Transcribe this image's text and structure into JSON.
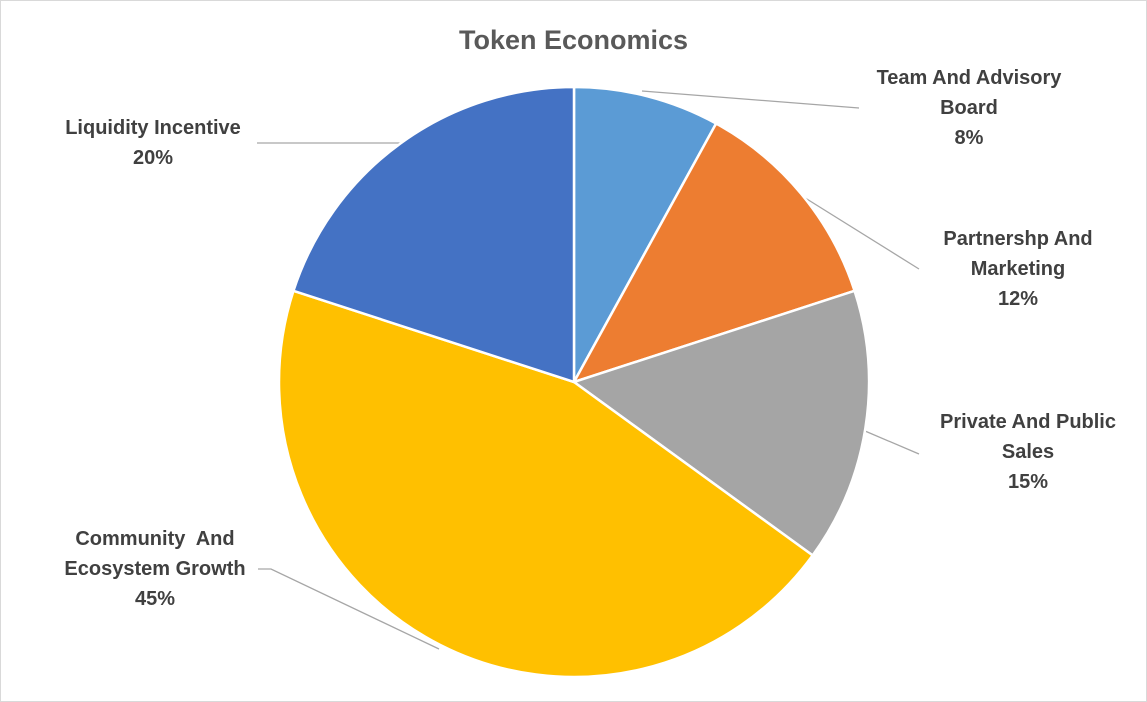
{
  "chart_data": {
    "type": "pie",
    "title": "Token Economics",
    "slices": [
      {
        "name_lines": [
          "Team And Advisory",
          "Board"
        ],
        "value": 8,
        "label": "8%",
        "color": "#5B9BD5"
      },
      {
        "name_lines": [
          "Partnershp And",
          "Marketing"
        ],
        "value": 12,
        "label": "12%",
        "color": "#ED7D31"
      },
      {
        "name_lines": [
          "Private And Public",
          "Sales"
        ],
        "value": 15,
        "label": "15%",
        "color": "#A5A5A5"
      },
      {
        "name_lines": [
          "Community  And",
          "Ecosystem Growth"
        ],
        "value": 45,
        "label": "45%",
        "color": "#FFC000"
      },
      {
        "name_lines": [
          "Liquidity Incentive"
        ],
        "value": 20,
        "label": "20%",
        "color": "#4472C4"
      }
    ]
  }
}
